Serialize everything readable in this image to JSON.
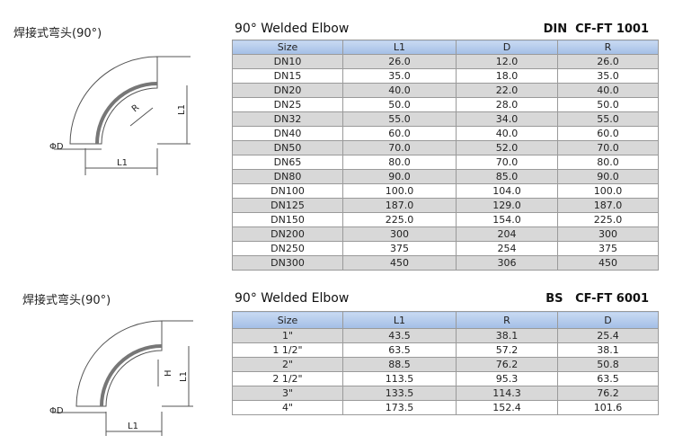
{
  "sections": [
    {
      "heading": "焊接式弯头(90°)",
      "drawing_labels": {
        "diameter": "ΦD",
        "length_horizontal": "L1",
        "length_vertical": "L1",
        "inner": "R"
      },
      "title": "90° Welded Elbow",
      "standard": "DIN  CF-FT 1001",
      "columns": [
        "Size",
        "L1",
        "D",
        "R"
      ],
      "rows": [
        [
          "DN10",
          "26.0",
          "12.0",
          "26.0"
        ],
        [
          "DN15",
          "35.0",
          "18.0",
          "35.0"
        ],
        [
          "DN20",
          "40.0",
          "22.0",
          "40.0"
        ],
        [
          "DN25",
          "50.0",
          "28.0",
          "50.0"
        ],
        [
          "DN32",
          "55.0",
          "34.0",
          "55.0"
        ],
        [
          "DN40",
          "60.0",
          "40.0",
          "60.0"
        ],
        [
          "DN50",
          "70.0",
          "52.0",
          "70.0"
        ],
        [
          "DN65",
          "80.0",
          "70.0",
          "80.0"
        ],
        [
          "DN80",
          "90.0",
          "85.0",
          "90.0"
        ],
        [
          "DN100",
          "100.0",
          "104.0",
          "100.0"
        ],
        [
          "DN125",
          "187.0",
          "129.0",
          "187.0"
        ],
        [
          "DN150",
          "225.0",
          "154.0",
          "225.0"
        ],
        [
          "DN200",
          "300",
          "204",
          "300"
        ],
        [
          "DN250",
          "375",
          "254",
          "375"
        ],
        [
          "DN300",
          "450",
          "306",
          "450"
        ]
      ]
    },
    {
      "heading": "焊接式弯头(90°)",
      "drawing_labels": {
        "diameter": "ΦD",
        "length_horizontal": "L1",
        "length_vertical": "L1",
        "inner": "H"
      },
      "title": "90° Welded Elbow",
      "standard": "BS   CF-FT 6001",
      "columns": [
        "Size",
        "L1",
        "R",
        "D"
      ],
      "rows": [
        [
          "1\"",
          "43.5",
          "38.1",
          "25.4"
        ],
        [
          "1 1/2\"",
          "63.5",
          "57.2",
          "38.1"
        ],
        [
          "2\"",
          "88.5",
          "76.2",
          "50.8"
        ],
        [
          "2 1/2\"",
          "113.5",
          "95.3",
          "63.5"
        ],
        [
          "3\"",
          "133.5",
          "114.3",
          "76.2"
        ],
        [
          "4\"",
          "173.5",
          "152.4",
          "101.6"
        ]
      ]
    }
  ]
}
